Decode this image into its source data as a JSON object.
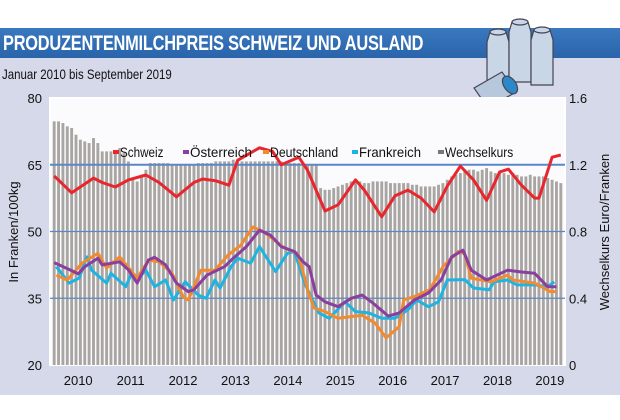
{
  "chart_data": {
    "type": "bar+line",
    "title": "PRODUZENTENMILCHPREIS SCHWEIZ UND AUSLAND",
    "subtitle": "Januar 2010 bis September 2019",
    "x_unit": "month index (0 = Januar 2010)",
    "x_range": [
      0,
      116
    ],
    "xtick_labels": [
      "2010",
      "2011",
      "2012",
      "2013",
      "2014",
      "2015",
      "2016",
      "2017",
      "2018",
      "2019"
    ],
    "ylabel": "In Franken/100kg",
    "ylim": [
      20,
      80
    ],
    "yticks": [
      "20",
      "35",
      "50",
      "65",
      "80"
    ],
    "y2label": "Wechselkurs Euro/Franken",
    "y2lim": [
      0,
      1.6
    ],
    "y2ticks": [
      "0",
      "0.4",
      "0.8",
      "1.2",
      "1.6"
    ],
    "grid": "horizontal at 35, 50, 65",
    "legend_position": "top",
    "series": [
      {
        "name": "Schweiz",
        "color": "#e8262d",
        "points": [
          [
            0,
            62.5
          ],
          [
            4,
            58.7
          ],
          [
            9,
            62
          ],
          [
            11,
            61
          ],
          [
            14,
            60
          ],
          [
            17,
            61.6
          ],
          [
            21,
            62.7
          ],
          [
            24,
            61
          ],
          [
            28,
            57.8
          ],
          [
            32,
            61
          ],
          [
            34,
            61.8
          ],
          [
            37,
            61.4
          ],
          [
            40,
            60.4
          ],
          [
            42,
            66
          ],
          [
            47,
            68.8
          ],
          [
            50,
            68
          ],
          [
            52,
            65
          ],
          [
            56,
            66.7
          ],
          [
            58,
            63.8
          ],
          [
            62,
            54.6
          ],
          [
            65,
            56
          ],
          [
            69,
            61.6
          ],
          [
            71,
            59.3
          ],
          [
            75,
            53.3
          ],
          [
            78,
            58
          ],
          [
            81,
            59.3
          ],
          [
            84,
            57.5
          ],
          [
            87,
            54.4
          ],
          [
            90,
            60.2
          ],
          [
            93,
            64.7
          ],
          [
            96,
            61.6
          ],
          [
            99,
            57
          ],
          [
            102,
            63.4
          ],
          [
            104,
            64
          ],
          [
            107,
            60.4
          ],
          [
            110,
            57.5
          ],
          [
            111,
            57.5
          ],
          [
            114,
            66.7
          ],
          [
            116,
            67.2
          ]
        ]
      },
      {
        "name": "Österreich",
        "color": "#8a3f9e",
        "points": [
          [
            0,
            43
          ],
          [
            4.5,
            41
          ],
          [
            5.5,
            40.5
          ],
          [
            7,
            42.1
          ],
          [
            10,
            44
          ],
          [
            11,
            42.5
          ],
          [
            15,
            43.2
          ],
          [
            17,
            41.4
          ],
          [
            19,
            38.4
          ],
          [
            21.6,
            43.6
          ],
          [
            23,
            44.2
          ],
          [
            25.5,
            42.5
          ],
          [
            28,
            38.4
          ],
          [
            30.7,
            36.5
          ],
          [
            32,
            36.9
          ],
          [
            35,
            40.2
          ],
          [
            39,
            42.1
          ],
          [
            41,
            44
          ],
          [
            44,
            46.6
          ],
          [
            47,
            50.3
          ],
          [
            49.5,
            49.2
          ],
          [
            52,
            46.6
          ],
          [
            55,
            45.5
          ],
          [
            57,
            43.2
          ],
          [
            58.4,
            42.1
          ],
          [
            60,
            35.7
          ],
          [
            62,
            34.2
          ],
          [
            65,
            33.1
          ],
          [
            68,
            35
          ],
          [
            70.5,
            35.7
          ],
          [
            73,
            33.9
          ],
          [
            76.5,
            31
          ],
          [
            79,
            31.7
          ],
          [
            82.5,
            34.6
          ],
          [
            85.7,
            36.2
          ],
          [
            88.6,
            39.1
          ],
          [
            91,
            44.3
          ],
          [
            93.6,
            45.8
          ],
          [
            95.5,
            41.3
          ],
          [
            99,
            39.1
          ],
          [
            103.8,
            41.3
          ],
          [
            107,
            40.9
          ],
          [
            110,
            40.6
          ],
          [
            113,
            37.6
          ],
          [
            115,
            37.6
          ]
        ]
      },
      {
        "name": "Deutschland",
        "color": "#f28a30",
        "points": [
          [
            0.5,
            40.2
          ],
          [
            3,
            39.1
          ],
          [
            6.4,
            42.9
          ],
          [
            10,
            45.1
          ],
          [
            12,
            41.8
          ],
          [
            15,
            44.3
          ],
          [
            19,
            39.5
          ],
          [
            21.6,
            43.6
          ],
          [
            24,
            43.2
          ],
          [
            27,
            40.6
          ],
          [
            29.5,
            35.4
          ],
          [
            30.7,
            34.6
          ],
          [
            33.6,
            41.3
          ],
          [
            36.8,
            41.3
          ],
          [
            39.8,
            44.7
          ],
          [
            42.7,
            46.9
          ],
          [
            45.5,
            51
          ],
          [
            48,
            49.9
          ],
          [
            52.7,
            46.3
          ],
          [
            55.7,
            45.1
          ],
          [
            57.5,
            39.1
          ],
          [
            58,
            36.9
          ],
          [
            59.5,
            32.8
          ],
          [
            62,
            32
          ],
          [
            65,
            30.5
          ],
          [
            70.5,
            31.2
          ],
          [
            73.5,
            29.4
          ],
          [
            76,
            26.1
          ],
          [
            79,
            28.6
          ],
          [
            80,
            34.6
          ],
          [
            82.5,
            35.4
          ],
          [
            86,
            36.9
          ],
          [
            89,
            42.1
          ],
          [
            92.5,
            45.5
          ],
          [
            94,
            45
          ],
          [
            95.5,
            39.5
          ],
          [
            100,
            38.7
          ],
          [
            103.8,
            40.2
          ],
          [
            105,
            39.1
          ],
          [
            110,
            38.4
          ],
          [
            113.6,
            36.5
          ],
          [
            115,
            36.5
          ]
        ]
      },
      {
        "name": "Frankreich",
        "color": "#1fb3e0",
        "points": [
          [
            0.5,
            42.1
          ],
          [
            3.4,
            38.4
          ],
          [
            5.7,
            39.5
          ],
          [
            7.5,
            44.3
          ],
          [
            8.6,
            41.3
          ],
          [
            12,
            38.4
          ],
          [
            13,
            40.6
          ],
          [
            16.4,
            37.6
          ],
          [
            17.7,
            40.6
          ],
          [
            19,
            39.2
          ],
          [
            21,
            41.3
          ],
          [
            23,
            37.6
          ],
          [
            25.5,
            39.1
          ],
          [
            27.3,
            34.6
          ],
          [
            30,
            38.7
          ],
          [
            33,
            35.7
          ],
          [
            34.8,
            35
          ],
          [
            36.8,
            39.1
          ],
          [
            38,
            37.3
          ],
          [
            40.5,
            42.1
          ],
          [
            42,
            44
          ],
          [
            45,
            42.9
          ],
          [
            47,
            46.6
          ],
          [
            50.7,
            41
          ],
          [
            53.4,
            45.1
          ],
          [
            55,
            45.5
          ],
          [
            57.5,
            38
          ],
          [
            60.6,
            31.7
          ],
          [
            63,
            30.5
          ],
          [
            66.6,
            34.2
          ],
          [
            69,
            32
          ],
          [
            72,
            31.7
          ],
          [
            75,
            30.5
          ],
          [
            78,
            30.5
          ],
          [
            81,
            32.4
          ],
          [
            83,
            34.6
          ],
          [
            85.7,
            33.1
          ],
          [
            88,
            34.2
          ],
          [
            90,
            39.1
          ],
          [
            94,
            39.2
          ],
          [
            96,
            37.3
          ],
          [
            99.6,
            36.9
          ],
          [
            100.7,
            38.7
          ],
          [
            103.8,
            39.1
          ],
          [
            106,
            38
          ],
          [
            110,
            38
          ],
          [
            113,
            37.6
          ],
          [
            114.5,
            38.7
          ]
        ]
      }
    ],
    "bars": {
      "name": "Wechselkurs",
      "color": "#a9a5a3",
      "axis": "right",
      "values": [
        1.46,
        1.46,
        1.45,
        1.43,
        1.42,
        1.38,
        1.35,
        1.34,
        1.33,
        1.36,
        1.33,
        1.28,
        1.28,
        1.28,
        1.27,
        1.3,
        1.27,
        1.22,
        1.12,
        1.1,
        1.14,
        1.17,
        1.21,
        1.21,
        1.21,
        1.21,
        1.21,
        1.2,
        1.2,
        1.2,
        1.2,
        1.2,
        1.2,
        1.21,
        1.21,
        1.21,
        1.21,
        1.22,
        1.22,
        1.22,
        1.22,
        1.23,
        1.23,
        1.22,
        1.22,
        1.22,
        1.22,
        1.22,
        1.22,
        1.22,
        1.22,
        1.22,
        1.22,
        1.21,
        1.21,
        1.21,
        1.21,
        1.21,
        1.2,
        1.2,
        1.2,
        1.06,
        1.05,
        1.05,
        1.06,
        1.07,
        1.08,
        1.09,
        1.1,
        1.1,
        1.1,
        1.09,
        1.09,
        1.1,
        1.1,
        1.1,
        1.1,
        1.09,
        1.09,
        1.09,
        1.09,
        1.09,
        1.08,
        1.08,
        1.07,
        1.07,
        1.07,
        1.07,
        1.08,
        1.09,
        1.11,
        1.13,
        1.14,
        1.15,
        1.16,
        1.17,
        1.17,
        1.16,
        1.17,
        1.18,
        1.16,
        1.15,
        1.16,
        1.15,
        1.14,
        1.15,
        1.14,
        1.13,
        1.13,
        1.14,
        1.13,
        1.13,
        1.13,
        1.12,
        1.11,
        1.1,
        1.09
      ]
    }
  }
}
